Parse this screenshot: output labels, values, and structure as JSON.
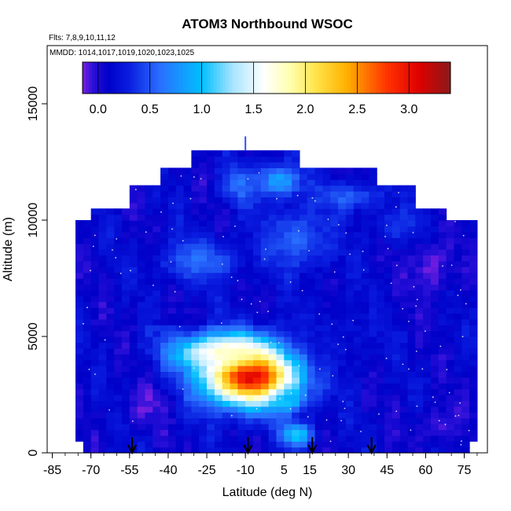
{
  "chart_data": {
    "type": "heatmap",
    "title": "ATOM3 Northbound WSOC",
    "subtitle_flights": "Flts: 7,8,9,10,11,12",
    "subtitle_dates": "MMDD: 1014,1017,1019,1020,1023,1025",
    "xlabel": "Latitude (deg N)",
    "ylabel": "Altitude (m)",
    "xlim": [
      -87,
      84
    ],
    "ylim": [
      0,
      17500
    ],
    "x_ticks": [
      -85,
      -70,
      -55,
      -40,
      -25,
      -10,
      5,
      15,
      30,
      45,
      60,
      75
    ],
    "x_tick_labels": [
      "-85",
      "-70",
      "-55",
      "-40",
      "-25",
      "-10",
      "5",
      "15",
      "30",
      "45",
      "60",
      "75"
    ],
    "y_ticks": [
      0,
      5000,
      10000,
      15000
    ],
    "y_tick_labels": [
      "0",
      "5000",
      "10000",
      "15000"
    ],
    "colorbar": {
      "range": [
        -0.15,
        3.4
      ],
      "ticks": [
        0.0,
        0.5,
        1.0,
        1.5,
        2.0,
        2.5,
        3.0
      ],
      "tick_labels": [
        "0.0",
        "0.5",
        "1.0",
        "1.5",
        "2.0",
        "2.5",
        "3.0"
      ],
      "stops": [
        {
          "v": -0.15,
          "color": "#7a1fe0"
        },
        {
          "v": -0.05,
          "color": "#2a10d8"
        },
        {
          "v": 0.1,
          "color": "#0000c8"
        },
        {
          "v": 0.3,
          "color": "#0a1ee0"
        },
        {
          "v": 0.6,
          "color": "#2a70ff"
        },
        {
          "v": 1.0,
          "color": "#00bfff"
        },
        {
          "v": 1.3,
          "color": "#a8e4ff"
        },
        {
          "v": 1.6,
          "color": "#ffffff"
        },
        {
          "v": 1.85,
          "color": "#ffffb0"
        },
        {
          "v": 2.1,
          "color": "#ffe44a"
        },
        {
          "v": 2.4,
          "color": "#ffb000"
        },
        {
          "v": 2.8,
          "color": "#ff3000"
        },
        {
          "v": 3.1,
          "color": "#dd0000"
        },
        {
          "v": 3.4,
          "color": "#8b1a1a"
        }
      ]
    },
    "arrows_latitude": [
      -54,
      -9,
      16,
      39
    ],
    "vertical_marker": {
      "lat": -10,
      "alt_min": 13000,
      "alt_max": 13600
    },
    "envelope": [
      {
        "lat_min": -73,
        "lat_max": 78,
        "alt_min": 0,
        "alt_max": 600
      },
      {
        "lat_min": -75,
        "lat_max": 79,
        "alt_min": 600,
        "alt_max": 10000
      },
      {
        "lat_min": -69,
        "lat_max": 68,
        "alt_min": 10000,
        "alt_max": 10500
      },
      {
        "lat_min": -56,
        "lat_max": 55,
        "alt_min": 10500,
        "alt_max": 11500
      },
      {
        "lat_min": -43,
        "lat_max": 40,
        "alt_min": 11500,
        "alt_max": 12300
      },
      {
        "lat_min": -31,
        "lat_max": 12,
        "alt_min": 12300,
        "alt_max": 12900
      }
    ],
    "features": [
      {
        "lat": -8,
        "alt": 3400,
        "slat": 18,
        "salt": 1300,
        "value": 3.2
      },
      {
        "lat": -20,
        "alt": 4300,
        "slat": 18,
        "salt": 700,
        "value": 1.6
      },
      {
        "lat": 7,
        "alt": 2300,
        "slat": 6,
        "salt": 500,
        "value": 1.0
      },
      {
        "lat": -28,
        "alt": 8300,
        "slat": 15,
        "salt": 900,
        "value": 0.6
      },
      {
        "lat": 10,
        "alt": 9200,
        "slat": 13,
        "salt": 1300,
        "value": 0.55
      },
      {
        "lat": 3,
        "alt": 11700,
        "slat": 9,
        "salt": 700,
        "value": 0.85
      },
      {
        "lat": -12,
        "alt": 11500,
        "slat": 7,
        "salt": 800,
        "value": 0.6
      },
      {
        "lat": 30,
        "alt": 11000,
        "slat": 12,
        "salt": 600,
        "value": 0.55
      },
      {
        "lat": 10,
        "alt": 800,
        "slat": 6,
        "salt": 500,
        "value": 1.1
      },
      {
        "lat": -48,
        "alt": 2100,
        "slat": 8,
        "salt": 800,
        "value": -0.12
      },
      {
        "lat": 62,
        "alt": 8000,
        "slat": 9,
        "salt": 1500,
        "value": -0.1
      },
      {
        "lat": 65,
        "alt": 1200,
        "slat": 8,
        "salt": 900,
        "value": -0.08
      },
      {
        "lat": 25,
        "alt": 5000,
        "slat": 20,
        "salt": 1500,
        "value": 0.2
      },
      {
        "lat": 50,
        "alt": 9800,
        "slat": 10,
        "salt": 700,
        "value": 0.4
      }
    ]
  }
}
